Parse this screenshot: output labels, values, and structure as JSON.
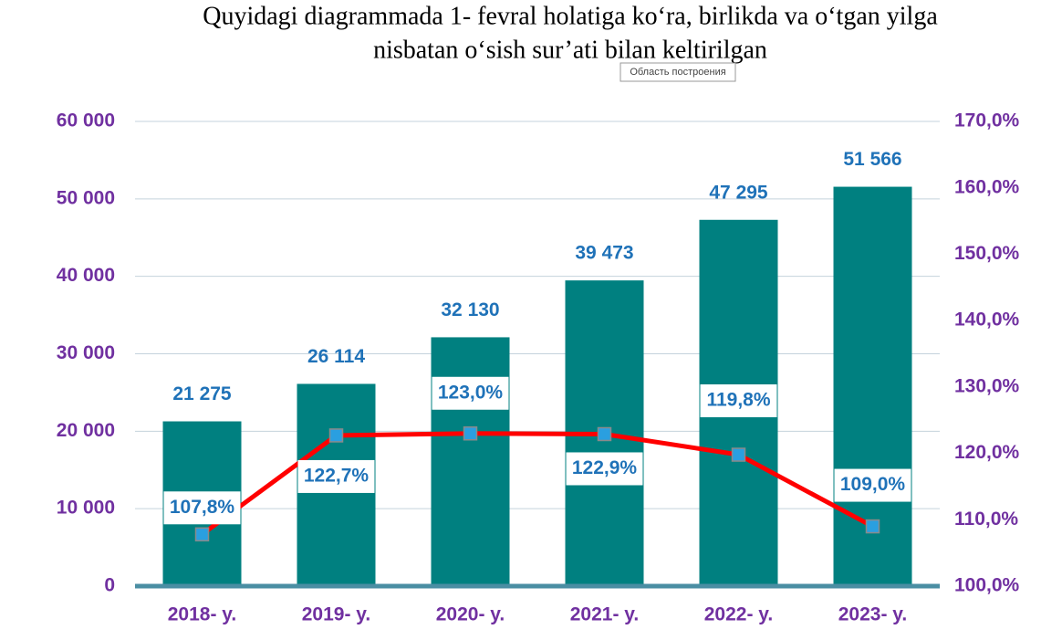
{
  "chart_data": {
    "type": "bar-line",
    "title": [
      "Quyidagi diagrammada 1- fevral holatiga ko‘ra, birlikda va o‘tgan yilga",
      "nisbatan o‘sish sur’ati bilan keltirilgan"
    ],
    "tooltip": "Область построения",
    "categories": [
      "2018- y.",
      "2019- y.",
      "2020- y.",
      "2021- y.",
      "2022- y.",
      "2023- y."
    ],
    "series": [
      {
        "type": "bar",
        "color": "#008080",
        "values": [
          21275,
          26114,
          32130,
          39473,
          47295,
          51566
        ],
        "value_labels": [
          "21 275",
          "26 114",
          "32 130",
          "39 473",
          "47 295",
          "51 566"
        ]
      },
      {
        "type": "line",
        "axis": "y2",
        "color": "#ff0000",
        "marker_color": "#2a9fe0",
        "values": [
          107.8,
          122.7,
          123.0,
          122.9,
          119.8,
          109.0
        ],
        "value_labels": [
          "107,8%",
          "122,7%",
          "123,0%",
          "122,9%",
          "119,8%",
          "109,0%"
        ]
      }
    ],
    "ylim": [
      0,
      60000
    ],
    "yticks": [
      {
        "value": 0,
        "label": "0"
      },
      {
        "value": 10000,
        "label": "10 000"
      },
      {
        "value": 20000,
        "label": "20 000"
      },
      {
        "value": 30000,
        "label": "30 000"
      },
      {
        "value": 40000,
        "label": "40 000"
      },
      {
        "value": 50000,
        "label": "50 000"
      },
      {
        "value": 60000,
        "label": "60 000"
      }
    ],
    "y2lim": [
      100,
      170
    ],
    "y2ticks": [
      {
        "value": 100,
        "label": "100,0%"
      },
      {
        "value": 110,
        "label": "110,0%"
      },
      {
        "value": 120,
        "label": "120,0%"
      },
      {
        "value": 130,
        "label": "130,0%"
      },
      {
        "value": 140,
        "label": "140,0%"
      },
      {
        "value": 150,
        "label": "150,0%"
      },
      {
        "value": 160,
        "label": "160,0%"
      },
      {
        "value": 170,
        "label": "170,0%"
      }
    ],
    "grid": true
  }
}
